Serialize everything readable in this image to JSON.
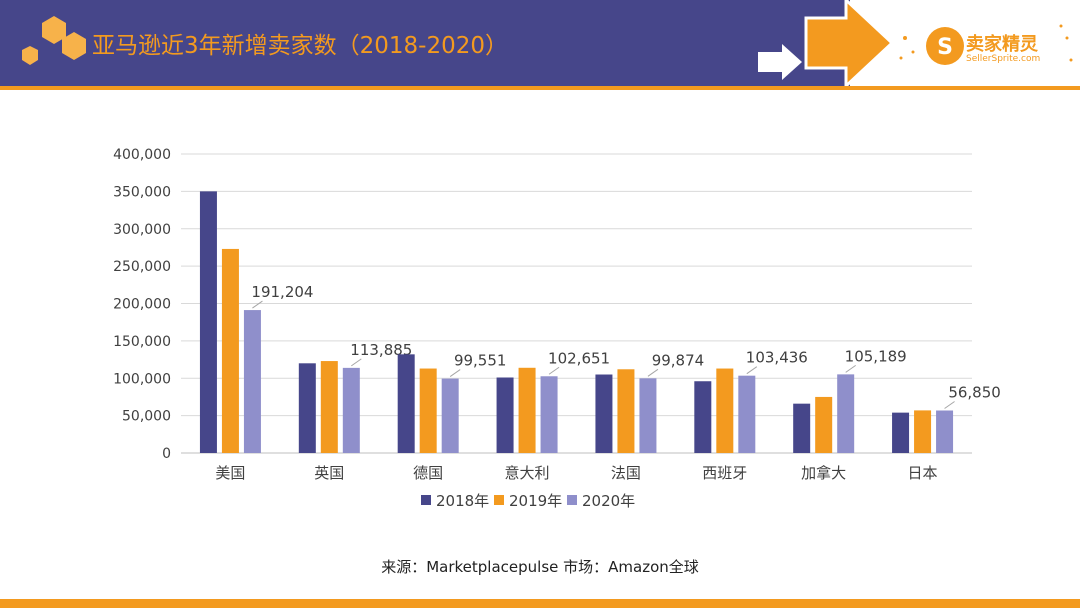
{
  "header": {
    "title": "亚马逊近3年新增卖家数（2018-2020）",
    "logo_name": "卖家精灵",
    "logo_url": "SellerSprite.com"
  },
  "colors": {
    "band": "#46468a",
    "accent": "#f39a1f",
    "series_2018": "#46468a",
    "series_2019": "#f39a1f",
    "series_2020": "#8f8fcb"
  },
  "chart_data": {
    "type": "bar",
    "title": "",
    "categories": [
      "美国",
      "英国",
      "德国",
      "意大利",
      "法国",
      "西班牙",
      "加拿大",
      "日本"
    ],
    "series": [
      {
        "name": "2018年",
        "values": [
          350000,
          120000,
          132000,
          101000,
          105000,
          96000,
          66000,
          54000
        ]
      },
      {
        "name": "2019年",
        "values": [
          273000,
          123000,
          113000,
          114000,
          112000,
          113000,
          75000,
          57000
        ]
      },
      {
        "name": "2020年",
        "values": [
          191204,
          113885,
          99551,
          102651,
          99874,
          103436,
          105189,
          56850
        ]
      }
    ],
    "data_labels": [
      "191,204",
      "113,885",
      "99,551",
      "102,651",
      "99,874",
      "103,436",
      "105,189",
      "56,850"
    ],
    "y_ticks": [
      0,
      50000,
      100000,
      150000,
      200000,
      250000,
      300000,
      350000,
      400000
    ],
    "y_tick_labels": [
      "0",
      "50,000",
      "100,000",
      "150,000",
      "200,000",
      "250,000",
      "300,000",
      "350,000",
      "400,000"
    ],
    "ylim": [
      0,
      400000
    ],
    "grid": true,
    "legend_position": "bottom"
  },
  "footer": {
    "source": "来源：Marketplacepulse    市场：Amazon全球"
  }
}
